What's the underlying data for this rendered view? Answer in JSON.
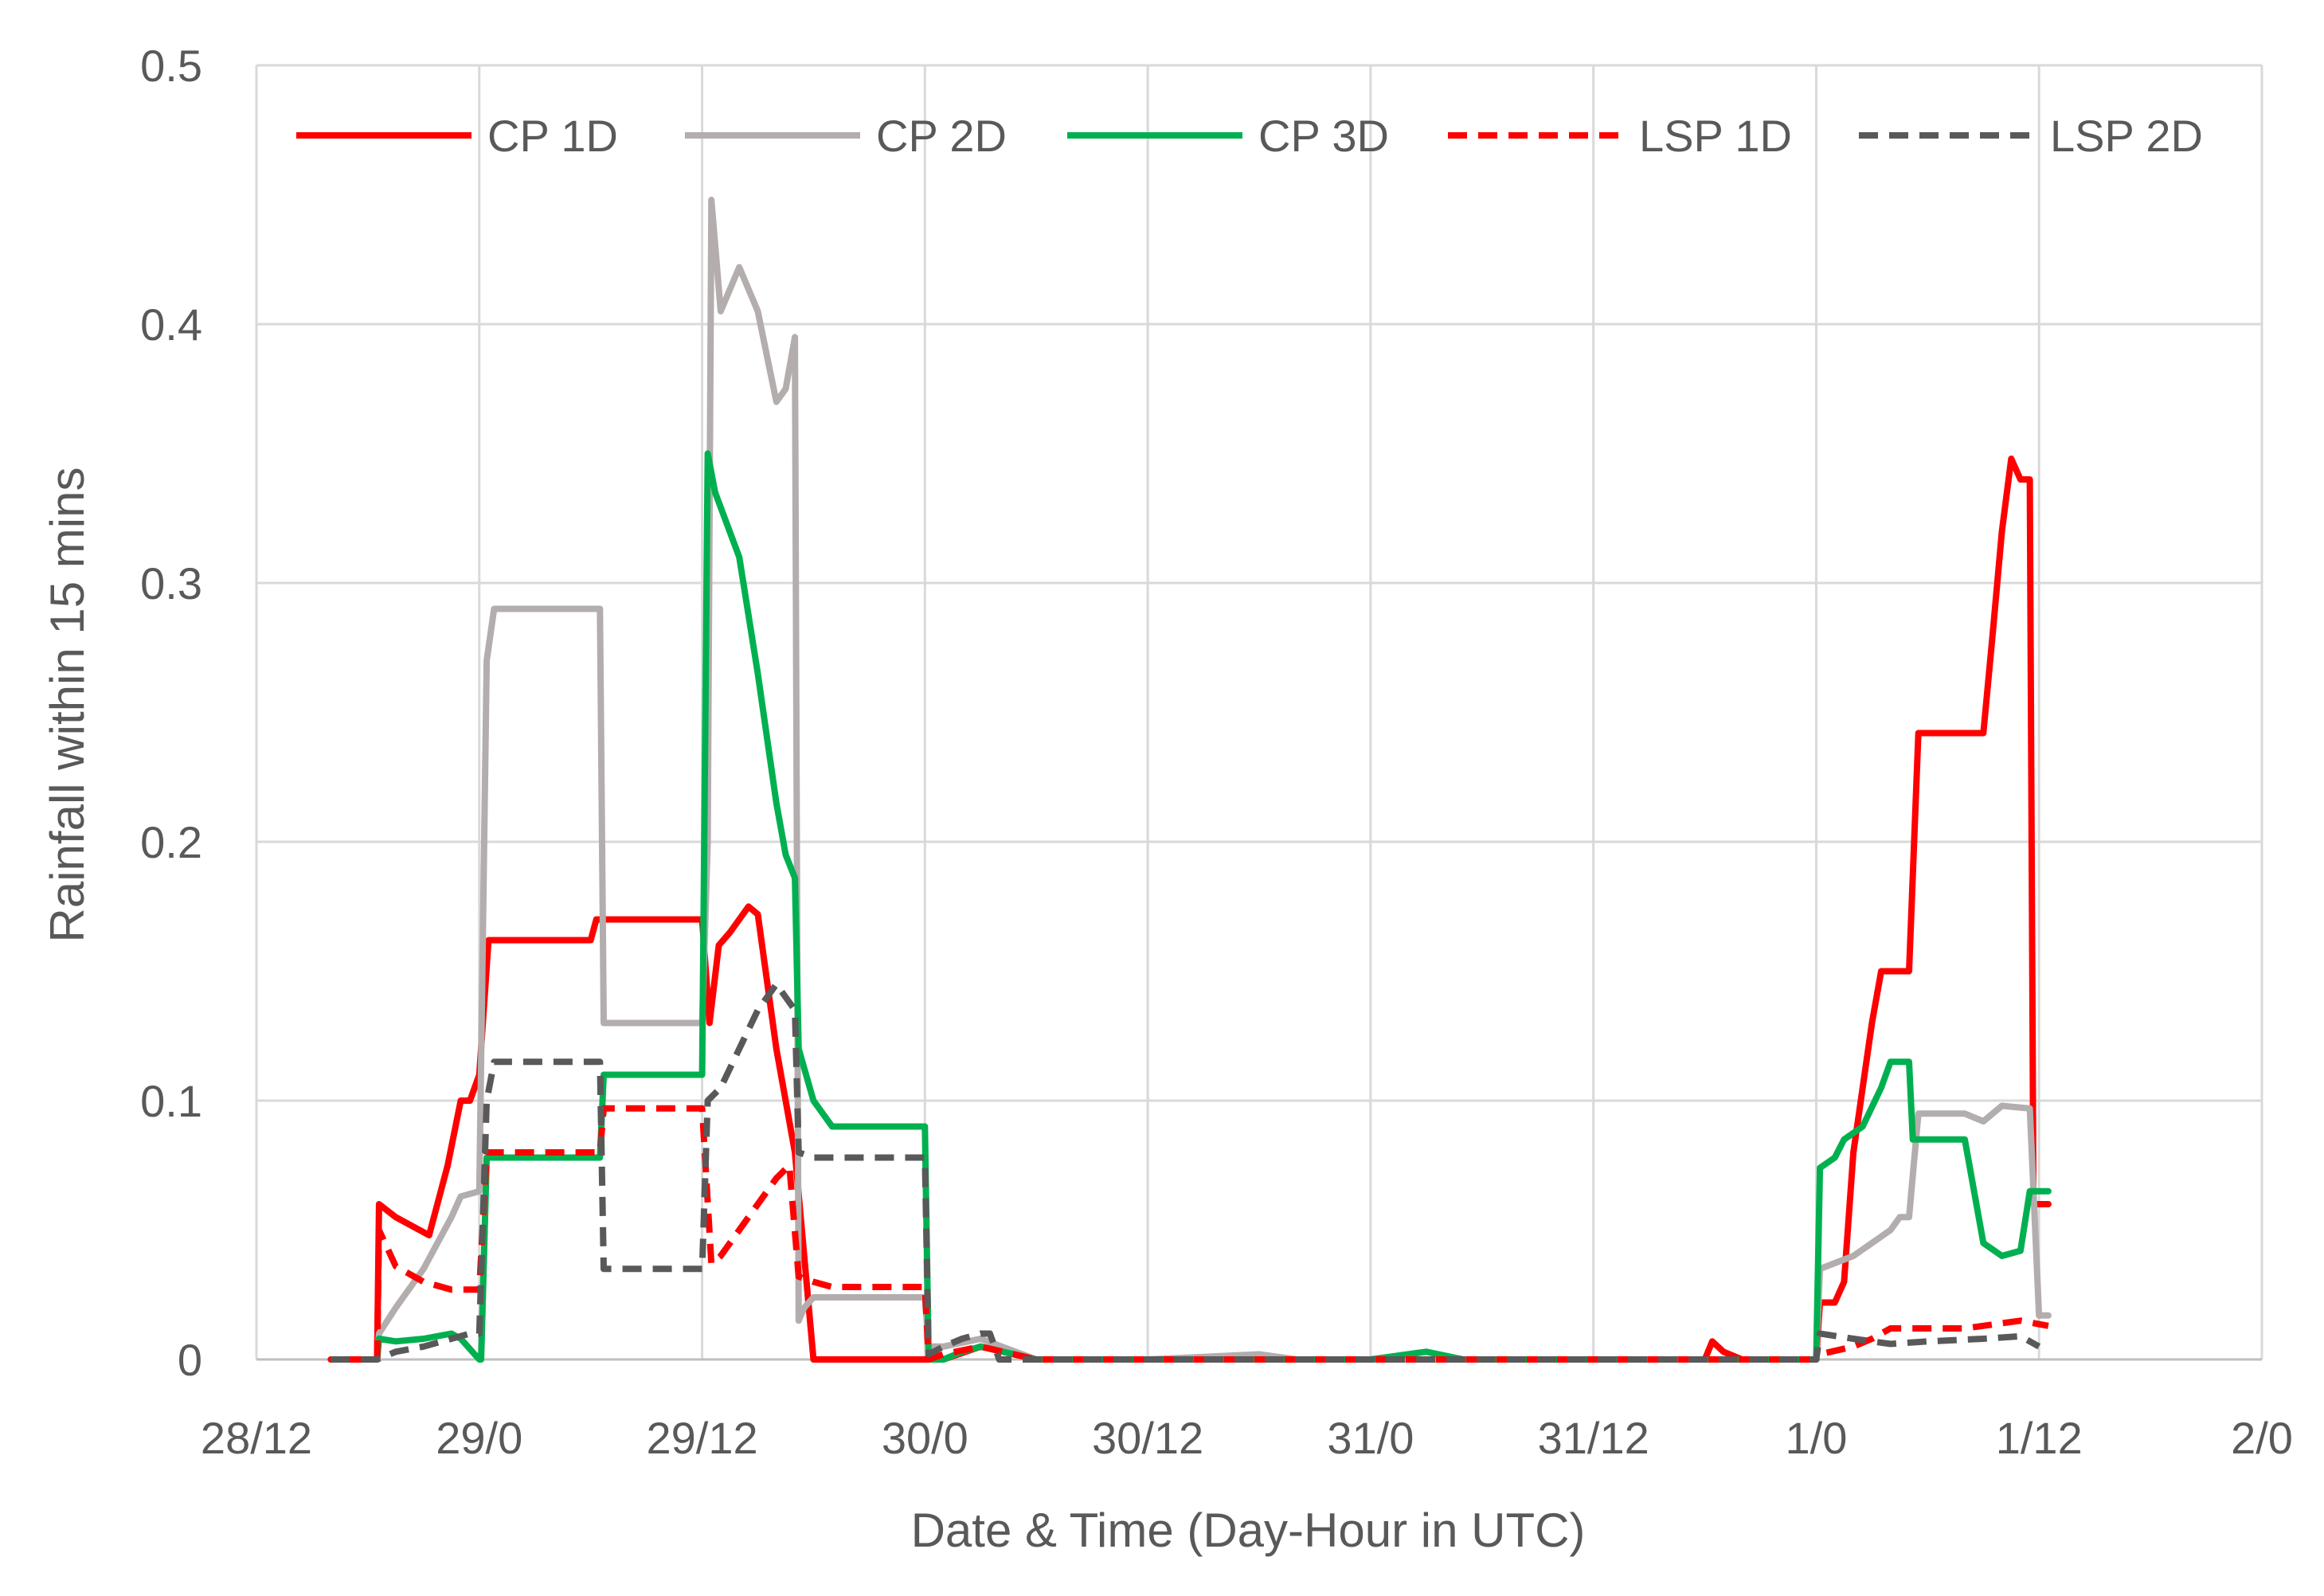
{
  "chart_data": {
    "type": "line",
    "title": "",
    "xlabel": "Date & Time (Day-Hour in UTC)",
    "ylabel": "Rainfall within 15 mins",
    "xlim": [
      0,
      108
    ],
    "ylim": [
      0,
      0.5
    ],
    "x_ticks": [
      {
        "x": 0,
        "label": "28/12"
      },
      {
        "x": 12,
        "label": "29/0"
      },
      {
        "x": 24,
        "label": "29/12"
      },
      {
        "x": 36,
        "label": "30/0"
      },
      {
        "x": 48,
        "label": "30/12"
      },
      {
        "x": 60,
        "label": "31/0"
      },
      {
        "x": 72,
        "label": "31/12"
      },
      {
        "x": 84,
        "label": "1/0"
      },
      {
        "x": 96,
        "label": "1/12"
      },
      {
        "x": 108,
        "label": "2/0"
      }
    ],
    "y_ticks": [
      {
        "y": 0,
        "label": "0"
      },
      {
        "y": 0.1,
        "label": "0.1"
      },
      {
        "y": 0.2,
        "label": "0.2"
      },
      {
        "y": 0.3,
        "label": "0.3"
      },
      {
        "y": 0.4,
        "label": "0.4"
      },
      {
        "y": 0.5,
        "label": "0.5"
      }
    ],
    "grid": true,
    "legend_position": "top",
    "series": [
      {
        "name": "CP 1D",
        "color": "#ff0000",
        "dash": "solid",
        "points": [
          [
            4,
            0
          ],
          [
            6.5,
            0
          ],
          [
            6.6,
            0.06
          ],
          [
            7.5,
            0.055
          ],
          [
            9.3,
            0.048
          ],
          [
            10.3,
            0.075
          ],
          [
            11,
            0.1
          ],
          [
            11.5,
            0.1
          ],
          [
            12,
            0.11
          ],
          [
            12.5,
            0.162
          ],
          [
            18,
            0.162
          ],
          [
            18.3,
            0.17
          ],
          [
            24,
            0.17
          ],
          [
            24.4,
            0.13
          ],
          [
            24.9,
            0.16
          ],
          [
            25.5,
            0.165
          ],
          [
            26.5,
            0.175
          ],
          [
            27,
            0.172
          ],
          [
            28,
            0.12
          ],
          [
            29,
            0.08
          ],
          [
            30,
            0.0
          ],
          [
            36,
            0.0
          ],
          [
            37,
            0.0
          ],
          [
            39,
            0.005
          ],
          [
            42,
            0.0
          ],
          [
            72,
            0.0
          ],
          [
            78,
            0.0
          ],
          [
            78.4,
            0.007
          ],
          [
            79,
            0.003
          ],
          [
            80,
            0.0
          ],
          [
            84,
            0.0
          ],
          [
            84.2,
            0.022
          ],
          [
            85,
            0.022
          ],
          [
            85.5,
            0.03
          ],
          [
            86,
            0.08
          ],
          [
            87,
            0.13
          ],
          [
            87.5,
            0.15
          ],
          [
            89,
            0.15
          ],
          [
            89.5,
            0.242
          ],
          [
            93,
            0.242
          ],
          [
            93.5,
            0.28
          ],
          [
            94,
            0.32
          ],
          [
            94.5,
            0.348
          ],
          [
            95,
            0.34
          ],
          [
            95.5,
            0.34
          ],
          [
            95.7,
            0.06
          ],
          [
            96.5,
            0.06
          ]
        ]
      },
      {
        "name": "CP 2D",
        "color": "#b3adad",
        "dash": "solid",
        "points": [
          [
            6.5,
            0
          ],
          [
            6.6,
            0.01
          ],
          [
            7.5,
            0.02
          ],
          [
            9,
            0.035
          ],
          [
            10.5,
            0.055
          ],
          [
            11,
            0.063
          ],
          [
            12,
            0.065
          ],
          [
            12.4,
            0.27
          ],
          [
            12.8,
            0.29
          ],
          [
            18.5,
            0.29
          ],
          [
            18.7,
            0.13
          ],
          [
            24,
            0.13
          ],
          [
            24.3,
            0.2
          ],
          [
            24.5,
            0.448
          ],
          [
            25,
            0.405
          ],
          [
            26,
            0.422
          ],
          [
            27,
            0.405
          ],
          [
            28,
            0.37
          ],
          [
            28.5,
            0.375
          ],
          [
            29,
            0.395
          ],
          [
            29.2,
            0.015
          ],
          [
            29.5,
            0.02
          ],
          [
            30,
            0.024
          ],
          [
            36,
            0.024
          ],
          [
            36.2,
            0.005
          ],
          [
            37,
            0.005
          ],
          [
            39,
            0.008
          ],
          [
            42,
            0.0
          ],
          [
            48,
            0.0
          ],
          [
            54,
            0.002
          ],
          [
            56,
            0.0
          ],
          [
            84,
            0.0
          ],
          [
            84.2,
            0.035
          ],
          [
            86,
            0.04
          ],
          [
            87,
            0.045
          ],
          [
            88,
            0.05
          ],
          [
            88.5,
            0.055
          ],
          [
            89,
            0.055
          ],
          [
            89.5,
            0.095
          ],
          [
            92,
            0.095
          ],
          [
            93,
            0.092
          ],
          [
            94,
            0.098
          ],
          [
            95.5,
            0.097
          ],
          [
            96,
            0.017
          ],
          [
            96.5,
            0.017
          ]
        ]
      },
      {
        "name": "CP 3D",
        "color": "#00b050",
        "dash": "solid",
        "points": [
          [
            6.5,
            0
          ],
          [
            6.6,
            0.008
          ],
          [
            7.5,
            0.007
          ],
          [
            9,
            0.008
          ],
          [
            10.5,
            0.01
          ],
          [
            11,
            0.008
          ],
          [
            12,
            0.0
          ],
          [
            12.1,
            0.0
          ],
          [
            12.4,
            0.078
          ],
          [
            18.5,
            0.078
          ],
          [
            18.7,
            0.11
          ],
          [
            24,
            0.11
          ],
          [
            24.3,
            0.35
          ],
          [
            24.7,
            0.335
          ],
          [
            26,
            0.31
          ],
          [
            27,
            0.265
          ],
          [
            28,
            0.215
          ],
          [
            28.5,
            0.195
          ],
          [
            29,
            0.186
          ],
          [
            29.2,
            0.12
          ],
          [
            30,
            0.1
          ],
          [
            31,
            0.09
          ],
          [
            36,
            0.09
          ],
          [
            36.2,
            0.0
          ],
          [
            37,
            0.0
          ],
          [
            38,
            0.003
          ],
          [
            39,
            0.005
          ],
          [
            42,
            0.0
          ],
          [
            60,
            0.0
          ],
          [
            63,
            0.003
          ],
          [
            65,
            0.0
          ],
          [
            84,
            0.0
          ],
          [
            84.2,
            0.074
          ],
          [
            85,
            0.078
          ],
          [
            85.5,
            0.085
          ],
          [
            86.5,
            0.09
          ],
          [
            87.5,
            0.105
          ],
          [
            88,
            0.115
          ],
          [
            89,
            0.115
          ],
          [
            89.2,
            0.085
          ],
          [
            92,
            0.085
          ],
          [
            93,
            0.045
          ],
          [
            94,
            0.04
          ],
          [
            95,
            0.042
          ],
          [
            95.5,
            0.065
          ],
          [
            96.5,
            0.065
          ]
        ]
      },
      {
        "name": "LSP 1D",
        "color": "#ff0000",
        "dash": "dashed",
        "points": [
          [
            6.5,
            0
          ],
          [
            6.6,
            0.05
          ],
          [
            7.5,
            0.036
          ],
          [
            9,
            0.03
          ],
          [
            10.5,
            0.027
          ],
          [
            11,
            0.027
          ],
          [
            12,
            0.027
          ],
          [
            12.4,
            0.08
          ],
          [
            18.5,
            0.08
          ],
          [
            18.7,
            0.097
          ],
          [
            24,
            0.097
          ],
          [
            24.5,
            0.037
          ],
          [
            25,
            0.04
          ],
          [
            26,
            0.05
          ],
          [
            27,
            0.06
          ],
          [
            28,
            0.07
          ],
          [
            28.7,
            0.075
          ],
          [
            29.2,
            0.032
          ],
          [
            30,
            0.03
          ],
          [
            31,
            0.028
          ],
          [
            36,
            0.028
          ],
          [
            36.2,
            0.0
          ],
          [
            37,
            0.002
          ],
          [
            39,
            0.005
          ],
          [
            42,
            0.0
          ],
          [
            84,
            0.0
          ],
          [
            84.2,
            0.002
          ],
          [
            86,
            0.005
          ],
          [
            87,
            0.008
          ],
          [
            88,
            0.012
          ],
          [
            92,
            0.012
          ],
          [
            94,
            0.014
          ],
          [
            95,
            0.015
          ],
          [
            96.5,
            0.013
          ]
        ]
      },
      {
        "name": "LSP 2D",
        "color": "#595959",
        "dash": "dashed",
        "points": [
          [
            4,
            0
          ],
          [
            6.5,
            0
          ],
          [
            7.5,
            0.003
          ],
          [
            9,
            0.005
          ],
          [
            10.5,
            0.008
          ],
          [
            11.5,
            0.01
          ],
          [
            12,
            0.01
          ],
          [
            12.4,
            0.1
          ],
          [
            12.8,
            0.115
          ],
          [
            18.5,
            0.115
          ],
          [
            18.7,
            0.035
          ],
          [
            24,
            0.035
          ],
          [
            24.3,
            0.1
          ],
          [
            25,
            0.105
          ],
          [
            26,
            0.12
          ],
          [
            27,
            0.135
          ],
          [
            28,
            0.145
          ],
          [
            29,
            0.135
          ],
          [
            29.2,
            0.08
          ],
          [
            30,
            0.078
          ],
          [
            36,
            0.078
          ],
          [
            36.2,
            0.002
          ],
          [
            37,
            0.005
          ],
          [
            38,
            0.008
          ],
          [
            39,
            0.01
          ],
          [
            39.5,
            0.01
          ],
          [
            40,
            0.0
          ],
          [
            84,
            0.0
          ],
          [
            84.2,
            0.01
          ],
          [
            86,
            0.008
          ],
          [
            88,
            0.006
          ],
          [
            90,
            0.007
          ],
          [
            93,
            0.008
          ],
          [
            95,
            0.009
          ],
          [
            96,
            0.005
          ]
        ]
      }
    ]
  }
}
